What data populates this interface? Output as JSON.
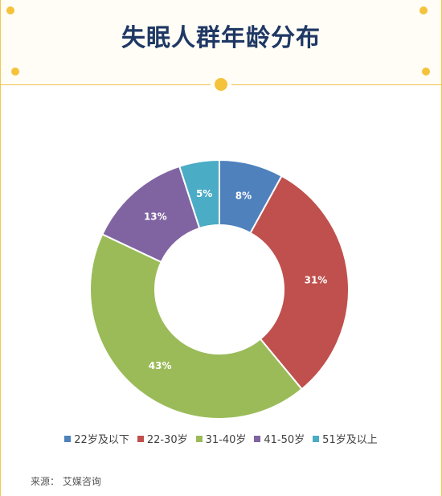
{
  "title": "失眠人群年龄分布",
  "source": "来源：  艾媒咨询",
  "chart_data": {
    "type": "pie",
    "donut": true,
    "legend_position": "bottom",
    "categories": [
      "22岁及以下",
      "22-30岁",
      "31-40岁",
      "41-50岁",
      "51岁及以上"
    ],
    "values": [
      8,
      31,
      43,
      13,
      5
    ],
    "labels": [
      "8%",
      "31%",
      "43%",
      "13%",
      "5%"
    ],
    "colors": [
      "#4f81bd",
      "#c0504d",
      "#9bbb59",
      "#8064a2",
      "#4bacc6"
    ]
  }
}
